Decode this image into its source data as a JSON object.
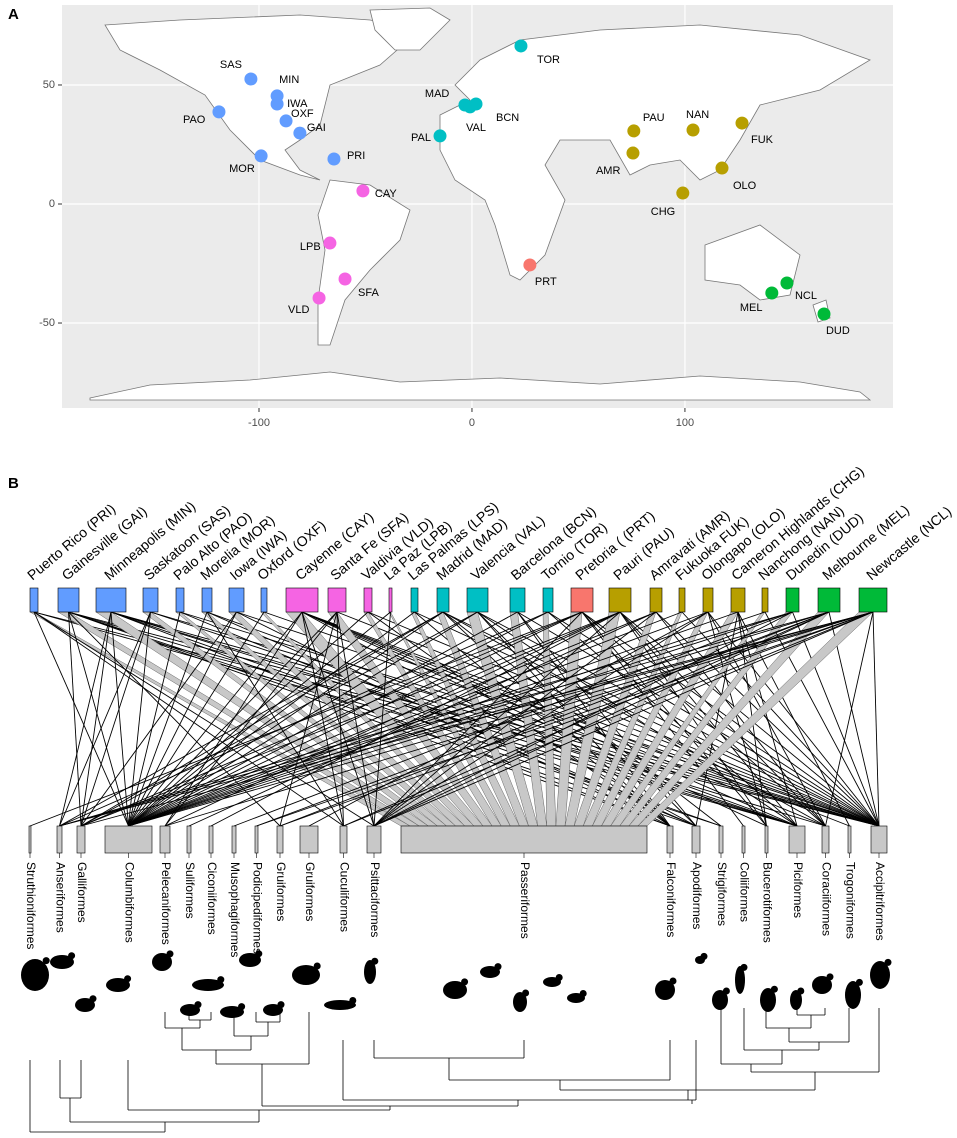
{
  "chart_data": {
    "type": "scatter",
    "panel_label": "A",
    "labels": [
      "SAS",
      "MIN",
      "IWA",
      "OXF",
      "GAI",
      "PAO",
      "MOR",
      "PRI",
      "CAY",
      "LPB",
      "SFA",
      "VLD",
      "MAD",
      "VAL",
      "BCN",
      "PAL",
      "TOR",
      "PRT",
      "PAU",
      "AMR",
      "NAN",
      "FUK",
      "OLO",
      "CHG",
      "NCL",
      "MEL",
      "DUD"
    ],
    "x": [
      -103.8,
      -91.5,
      -91.5,
      -87.3,
      -80.8,
      -118.8,
      -99,
      -64.8,
      -51.2,
      -66.7,
      -59.6,
      -71.8,
      -3.3,
      -0.9,
      1.9,
      -15,
      23,
      27.2,
      76,
      75.6,
      103.8,
      126.8,
      117.4,
      99,
      147.9,
      140.8,
      165.3
    ],
    "y": [
      52.5,
      45.4,
      42,
      34.9,
      29.8,
      38.7,
      20.2,
      18.9,
      5.5,
      -16.4,
      -31.5,
      -39.5,
      41.6,
      40.8,
      42,
      28.6,
      66.4,
      -25.6,
      30.7,
      21.4,
      31.1,
      34,
      15.1,
      4.6,
      -33.2,
      -37.4,
      -46.2
    ],
    "colors": [
      "#619cff",
      "#619cff",
      "#619cff",
      "#619cff",
      "#619cff",
      "#619cff",
      "#619cff",
      "#619cff",
      "#f564e3",
      "#f564e3",
      "#f564e3",
      "#f564e3",
      "#00bfc4",
      "#00bfc4",
      "#00bfc4",
      "#00bfc4",
      "#00bfc4",
      "#f8766d",
      "#b79f00",
      "#b79f00",
      "#b79f00",
      "#b79f00",
      "#b79f00",
      "#b79f00",
      "#00ba38",
      "#00ba38",
      "#00ba38"
    ],
    "xlim": [
      -192.5,
      197.7
    ],
    "ylim": [
      -85.7,
      83.6
    ],
    "xticks": [
      -100,
      0,
      100
    ],
    "yticks": [
      -50,
      0,
      50
    ],
    "grid": true
  },
  "panel_b": {
    "label": "B",
    "sites": [
      "Puerto Rico (PRI)",
      "Gainesville (GAI)",
      "Minneapolis (MIN)",
      "Saskatoon (SAS)",
      "Palo Alto (PAO)",
      "Morelia (MOR)",
      "Iowa (IWA)",
      "Oxford (OXF)",
      "Cayenne (CAY)",
      "Santa Fe (SFA)",
      "Valdivia (VLD)",
      "La Paz (LPB)",
      "Las Palmas (LPS)",
      "Madrid (MAD)",
      "Valencia (VAL)",
      "Barcelona (BCN)",
      "Tornio (TOR)",
      "Pretoria ( (PRT)",
      "Pauri (PAU)",
      "Amravati (AMR)",
      "Fukuoka FUK)",
      "Olongapo (OLO)",
      "Cameron Highlands (CHG)",
      "Nanchong (NAN)",
      "Dunedin (DUD)",
      "Melbourne (MEL)",
      "Newcastle (NCL)"
    ],
    "site_colors": [
      "#619cff",
      "#619cff",
      "#619cff",
      "#619cff",
      "#619cff",
      "#619cff",
      "#619cff",
      "#619cff",
      "#f564e3",
      "#f564e3",
      "#f564e3",
      "#f564e3",
      "#00bfc4",
      "#00bfc4",
      "#00bfc4",
      "#00bfc4",
      "#00bfc4",
      "#f8766d",
      "#b79f00",
      "#b79f00",
      "#b79f00",
      "#b79f00",
      "#b79f00",
      "#b79f00",
      "#00ba38",
      "#00ba38",
      "#00ba38"
    ],
    "orders": [
      "Struthioniformes",
      "Anseriformes",
      "Galliformes",
      "Columbiformes",
      "Pelecaniformes",
      "Suliformes",
      "Ciconiiformes",
      "Musophagiformes",
      "Podicipediformes",
      "Gruiformes",
      "Gruiformes",
      "Cuculiformes",
      "Psittaciformes",
      "Passeriformes",
      "Falconiformes",
      "Apodiformes",
      "Strigiformes",
      "Coliiformes",
      "Bucerotiformes",
      "Piciformes",
      "Coraciiformes",
      "Trogoniformes",
      "Accipitriformes"
    ],
    "links": [
      [
        13,
        3,
        12,
        22,
        19,
        11
      ],
      [
        13,
        3,
        2,
        9,
        22,
        19,
        14,
        15,
        16
      ],
      [
        13,
        3,
        2,
        1,
        22,
        14,
        16,
        19,
        20
      ],
      [
        13,
        3,
        2,
        22,
        19,
        1
      ],
      [
        13,
        3,
        15,
        22
      ],
      [
        13,
        3,
        11,
        15,
        19
      ],
      [
        13,
        3,
        2,
        22,
        14
      ],
      [
        13,
        3,
        22
      ],
      [
        13,
        3,
        12,
        4,
        11,
        15,
        22,
        19,
        20,
        21,
        18
      ],
      [
        13,
        3,
        12,
        4,
        9,
        22,
        11
      ],
      [
        13,
        3,
        22,
        14
      ],
      [
        13,
        3,
        12
      ],
      [
        13,
        3,
        22,
        14
      ],
      [
        13,
        3,
        2,
        22,
        14,
        16,
        20,
        1
      ],
      [
        13,
        3,
        2,
        22,
        14,
        15,
        19
      ],
      [
        13,
        3,
        22,
        14,
        15
      ],
      [
        13,
        3,
        22,
        19,
        1
      ],
      [
        13,
        3,
        2,
        22,
        17,
        20,
        18,
        12,
        0
      ],
      [
        13,
        3,
        2,
        12,
        20,
        22,
        19,
        18,
        6,
        4
      ],
      [
        13,
        3,
        12,
        20,
        22,
        5
      ],
      [
        13,
        3,
        22
      ],
      [
        13,
        3,
        12,
        20,
        22,
        18,
        10
      ],
      [
        13,
        3,
        19,
        15,
        18,
        21
      ],
      [
        13,
        3,
        22
      ],
      [
        13,
        3,
        1,
        12,
        22,
        7
      ],
      [
        13,
        3,
        12,
        1,
        22,
        8,
        9,
        11
      ],
      [
        13,
        3,
        12,
        1,
        2,
        22,
        20,
        8,
        9,
        11,
        4
      ]
    ]
  }
}
